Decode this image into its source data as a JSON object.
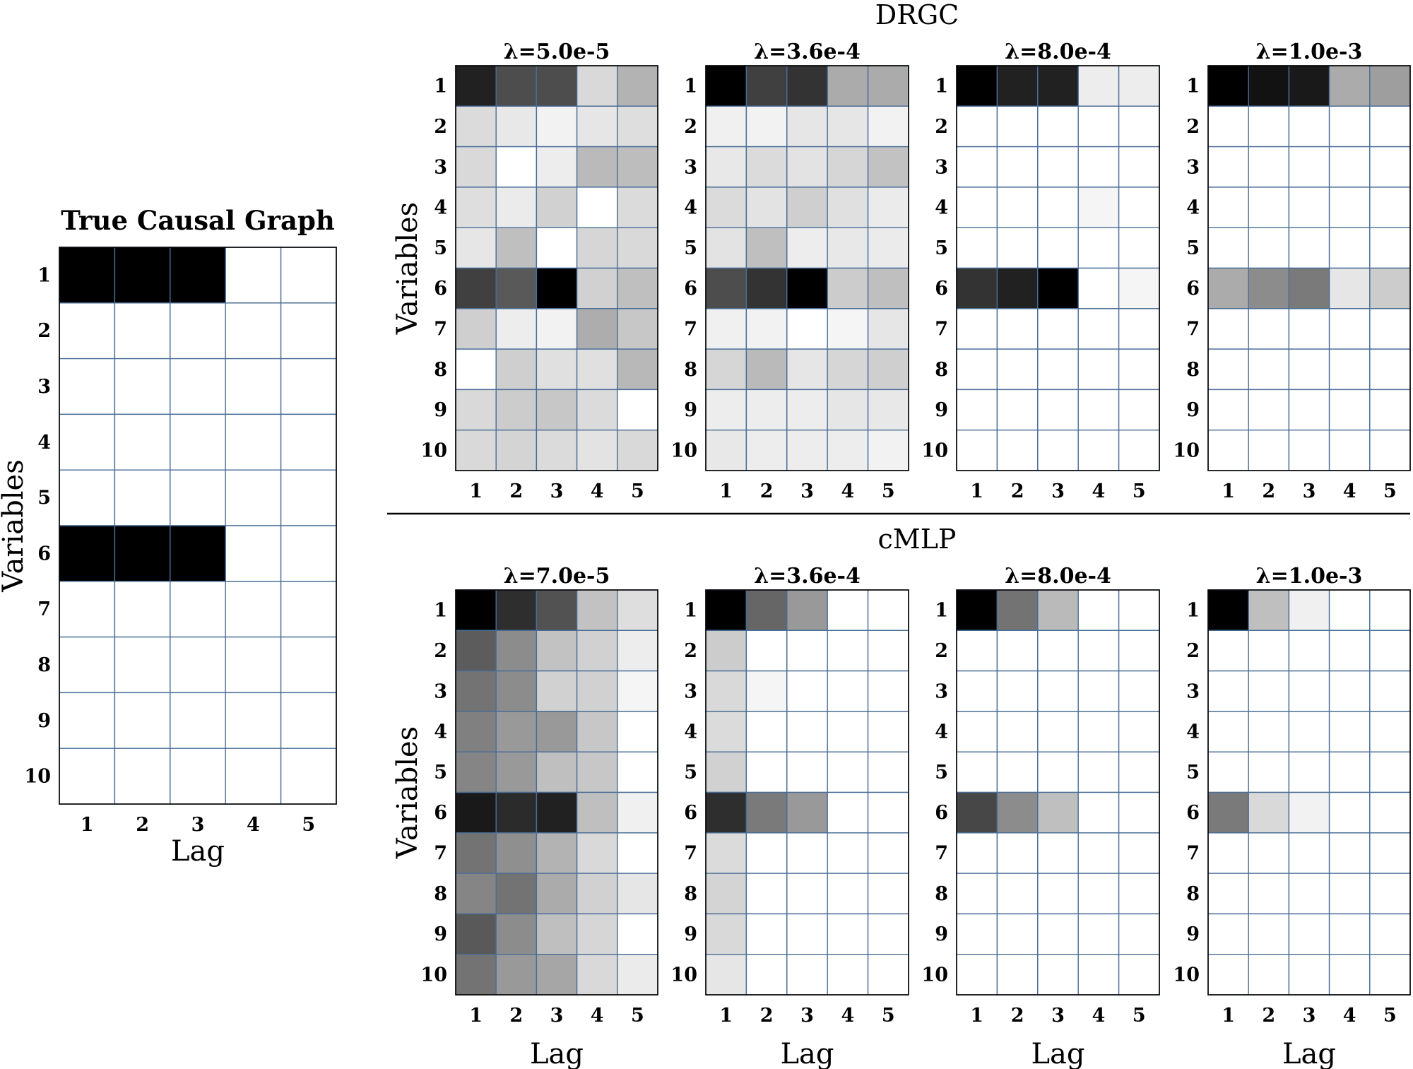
{
  "figure": {
    "top_group_title": "DRGC",
    "bottom_group_title": "cMLP"
  },
  "chart_data": [
    {
      "id": "truth",
      "type": "heatmap",
      "title": "True Causal Graph",
      "xlabel": "Lag",
      "ylabel": "Variables",
      "x_ticks": [
        "1",
        "2",
        "3",
        "4",
        "5"
      ],
      "y_ticks": [
        "1",
        "2",
        "3",
        "4",
        "5",
        "6",
        "7",
        "8",
        "9",
        "10"
      ],
      "color_scale": "0 = white, 1 = black",
      "values": [
        [
          1,
          1,
          1,
          0,
          0
        ],
        [
          0,
          0,
          0,
          0,
          0
        ],
        [
          0,
          0,
          0,
          0,
          0
        ],
        [
          0,
          0,
          0,
          0,
          0
        ],
        [
          0,
          0,
          0,
          0,
          0
        ],
        [
          1,
          1,
          1,
          0,
          0
        ],
        [
          0,
          0,
          0,
          0,
          0
        ],
        [
          0,
          0,
          0,
          0,
          0
        ],
        [
          0,
          0,
          0,
          0,
          0
        ],
        [
          0,
          0,
          0,
          0,
          0
        ]
      ]
    },
    {
      "id": "drgc-1",
      "group": "DRGC",
      "type": "heatmap",
      "title": "λ=5.0e-5",
      "xlabel": "",
      "ylabel": "Variables",
      "x_ticks": [
        "1",
        "2",
        "3",
        "4",
        "5"
      ],
      "y_ticks": [
        "1",
        "2",
        "3",
        "4",
        "5",
        "6",
        "7",
        "8",
        "9",
        "10"
      ],
      "color_scale": "0 = white, 1 = black",
      "values": [
        [
          0.87,
          0.7,
          0.7,
          0.15,
          0.3
        ],
        [
          0.14,
          0.09,
          0.05,
          0.1,
          0.13
        ],
        [
          0.15,
          0.0,
          0.07,
          0.27,
          0.26
        ],
        [
          0.13,
          0.08,
          0.18,
          0.0,
          0.14
        ],
        [
          0.1,
          0.25,
          0.0,
          0.16,
          0.15
        ],
        [
          0.75,
          0.65,
          1.0,
          0.18,
          0.25
        ],
        [
          0.19,
          0.07,
          0.05,
          0.32,
          0.22
        ],
        [
          0.0,
          0.19,
          0.12,
          0.12,
          0.28
        ],
        [
          0.15,
          0.2,
          0.22,
          0.14,
          0.0
        ],
        [
          0.15,
          0.17,
          0.14,
          0.11,
          0.15
        ]
      ]
    },
    {
      "id": "drgc-2",
      "group": "DRGC",
      "type": "heatmap",
      "title": "λ=3.6e-4",
      "xlabel": "",
      "ylabel": "",
      "x_ticks": [
        "1",
        "2",
        "3",
        "4",
        "5"
      ],
      "y_ticks": [
        "1",
        "2",
        "3",
        "4",
        "5",
        "6",
        "7",
        "8",
        "9",
        "10"
      ],
      "color_scale": "0 = white, 1 = black",
      "values": [
        [
          1.0,
          0.75,
          0.8,
          0.33,
          0.33
        ],
        [
          0.06,
          0.05,
          0.1,
          0.1,
          0.05
        ],
        [
          0.09,
          0.14,
          0.11,
          0.16,
          0.24
        ],
        [
          0.14,
          0.11,
          0.19,
          0.12,
          0.08
        ],
        [
          0.11,
          0.25,
          0.07,
          0.09,
          0.08
        ],
        [
          0.7,
          0.8,
          1.0,
          0.2,
          0.25
        ],
        [
          0.06,
          0.05,
          0.0,
          0.04,
          0.1
        ],
        [
          0.16,
          0.27,
          0.1,
          0.16,
          0.19
        ],
        [
          0.07,
          0.07,
          0.07,
          0.1,
          0.09
        ],
        [
          0.09,
          0.07,
          0.07,
          0.07,
          0.05
        ]
      ]
    },
    {
      "id": "drgc-3",
      "group": "DRGC",
      "type": "heatmap",
      "title": "λ=8.0e-4",
      "xlabel": "",
      "ylabel": "",
      "x_ticks": [
        "1",
        "2",
        "3",
        "4",
        "5"
      ],
      "y_ticks": [
        "1",
        "2",
        "3",
        "4",
        "5",
        "6",
        "7",
        "8",
        "9",
        "10"
      ],
      "color_scale": "0 = white, 1 = black",
      "values": [
        [
          1.0,
          0.87,
          0.87,
          0.07,
          0.07
        ],
        [
          0,
          0,
          0,
          0,
          0
        ],
        [
          0,
          0,
          0,
          0,
          0
        ],
        [
          0,
          0,
          0,
          0.04,
          0
        ],
        [
          0,
          0,
          0,
          0,
          0
        ],
        [
          0.8,
          0.87,
          1.0,
          0,
          0.04
        ],
        [
          0,
          0,
          0,
          0,
          0
        ],
        [
          0,
          0,
          0,
          0,
          0
        ],
        [
          0,
          0,
          0,
          0,
          0
        ],
        [
          0,
          0,
          0,
          0,
          0
        ]
      ]
    },
    {
      "id": "drgc-4",
      "group": "DRGC",
      "type": "heatmap",
      "title": "λ=1.0e-3",
      "xlabel": "",
      "ylabel": "",
      "x_ticks": [
        "1",
        "2",
        "3",
        "4",
        "5"
      ],
      "y_ticks": [
        "1",
        "2",
        "3",
        "4",
        "5",
        "6",
        "7",
        "8",
        "9",
        "10"
      ],
      "color_scale": "0 = white, 1 = black",
      "values": [
        [
          1.0,
          0.93,
          0.9,
          0.33,
          0.38
        ],
        [
          0,
          0,
          0,
          0,
          0
        ],
        [
          0,
          0,
          0,
          0,
          0
        ],
        [
          0,
          0,
          0,
          0,
          0
        ],
        [
          0,
          0,
          0,
          0,
          0
        ],
        [
          0.33,
          0.45,
          0.52,
          0.1,
          0.2
        ],
        [
          0,
          0,
          0,
          0,
          0
        ],
        [
          0,
          0,
          0,
          0,
          0
        ],
        [
          0,
          0,
          0,
          0,
          0
        ],
        [
          0,
          0,
          0,
          0,
          0
        ]
      ]
    },
    {
      "id": "cmlp-1",
      "group": "cMLP",
      "type": "heatmap",
      "title": "λ=7.0e-5",
      "xlabel": "Lag",
      "ylabel": "Variables",
      "x_ticks": [
        "1",
        "2",
        "3",
        "4",
        "5"
      ],
      "y_ticks": [
        "1",
        "2",
        "3",
        "4",
        "5",
        "6",
        "7",
        "8",
        "9",
        "10"
      ],
      "color_scale": "0 = white, 1 = black",
      "values": [
        [
          1.0,
          0.82,
          0.68,
          0.24,
          0.13
        ],
        [
          0.64,
          0.45,
          0.24,
          0.18,
          0.07
        ],
        [
          0.55,
          0.45,
          0.18,
          0.18,
          0.04
        ],
        [
          0.5,
          0.4,
          0.4,
          0.22,
          0.0
        ],
        [
          0.48,
          0.4,
          0.25,
          0.22,
          0.0
        ],
        [
          0.9,
          0.83,
          0.87,
          0.25,
          0.06
        ],
        [
          0.55,
          0.44,
          0.3,
          0.15,
          0.0
        ],
        [
          0.48,
          0.55,
          0.33,
          0.18,
          0.1
        ],
        [
          0.65,
          0.45,
          0.25,
          0.16,
          0.0
        ],
        [
          0.55,
          0.4,
          0.35,
          0.15,
          0.08
        ]
      ]
    },
    {
      "id": "cmlp-2",
      "group": "cMLP",
      "type": "heatmap",
      "title": "λ=3.6e-4",
      "xlabel": "Lag",
      "ylabel": "",
      "x_ticks": [
        "1",
        "2",
        "3",
        "4",
        "5"
      ],
      "y_ticks": [
        "1",
        "2",
        "3",
        "4",
        "5",
        "6",
        "7",
        "8",
        "9",
        "10"
      ],
      "color_scale": "0 = white, 1 = black",
      "values": [
        [
          1.0,
          0.6,
          0.4,
          0,
          0
        ],
        [
          0.2,
          0,
          0,
          0,
          0
        ],
        [
          0.15,
          0.04,
          0,
          0,
          0
        ],
        [
          0.14,
          0,
          0,
          0,
          0
        ],
        [
          0.18,
          0,
          0,
          0,
          0
        ],
        [
          0.82,
          0.52,
          0.4,
          0,
          0
        ],
        [
          0.14,
          0,
          0,
          0,
          0
        ],
        [
          0.17,
          0,
          0,
          0,
          0
        ],
        [
          0.15,
          0,
          0,
          0,
          0
        ],
        [
          0.1,
          0,
          0,
          0,
          0
        ]
      ]
    },
    {
      "id": "cmlp-3",
      "group": "cMLP",
      "type": "heatmap",
      "title": "λ=8.0e-4",
      "xlabel": "Lag",
      "ylabel": "",
      "x_ticks": [
        "1",
        "2",
        "3",
        "4",
        "5"
      ],
      "y_ticks": [
        "1",
        "2",
        "3",
        "4",
        "5",
        "6",
        "7",
        "8",
        "9",
        "10"
      ],
      "color_scale": "0 = white, 1 = black",
      "values": [
        [
          1.0,
          0.55,
          0.27,
          0,
          0
        ],
        [
          0,
          0,
          0,
          0,
          0
        ],
        [
          0,
          0,
          0,
          0,
          0
        ],
        [
          0,
          0,
          0,
          0,
          0
        ],
        [
          0,
          0,
          0,
          0,
          0
        ],
        [
          0.72,
          0.45,
          0.25,
          0,
          0
        ],
        [
          0,
          0,
          0,
          0,
          0
        ],
        [
          0,
          0,
          0,
          0,
          0
        ],
        [
          0,
          0,
          0,
          0,
          0
        ],
        [
          0,
          0,
          0,
          0,
          0
        ]
      ]
    },
    {
      "id": "cmlp-4",
      "group": "cMLP",
      "type": "heatmap",
      "title": "λ=1.0e-3",
      "xlabel": "Lag",
      "ylabel": "",
      "x_ticks": [
        "1",
        "2",
        "3",
        "4",
        "5"
      ],
      "y_ticks": [
        "1",
        "2",
        "3",
        "4",
        "5",
        "6",
        "7",
        "8",
        "9",
        "10"
      ],
      "color_scale": "0 = white, 1 = black",
      "values": [
        [
          1.0,
          0.25,
          0.06,
          0,
          0
        ],
        [
          0,
          0,
          0,
          0,
          0
        ],
        [
          0,
          0,
          0,
          0,
          0
        ],
        [
          0,
          0,
          0,
          0,
          0
        ],
        [
          0,
          0,
          0,
          0,
          0
        ],
        [
          0.52,
          0.15,
          0.05,
          0,
          0
        ],
        [
          0,
          0,
          0,
          0,
          0
        ],
        [
          0,
          0,
          0,
          0,
          0
        ],
        [
          0,
          0,
          0,
          0,
          0
        ],
        [
          0,
          0,
          0,
          0,
          0
        ]
      ]
    }
  ]
}
